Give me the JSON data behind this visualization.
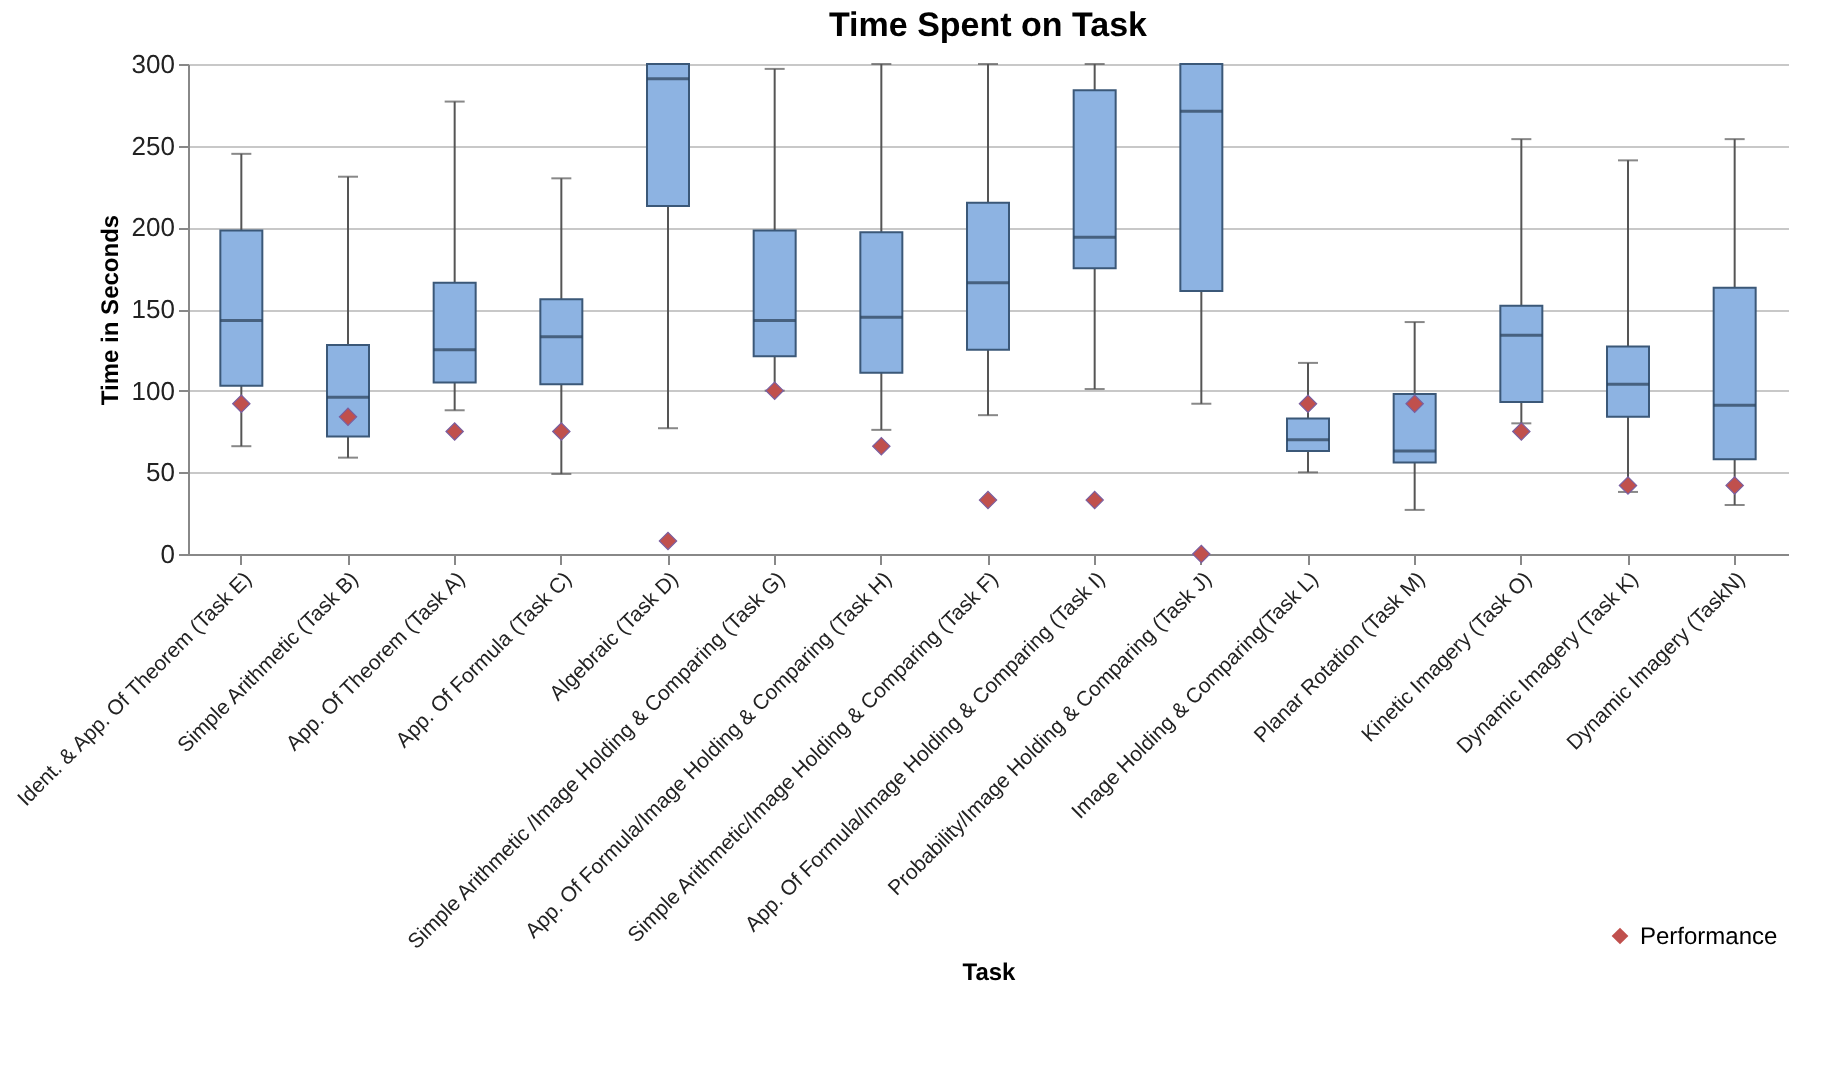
{
  "chart_data": {
    "type": "box",
    "title": "Time Spent on Task",
    "xlabel": "Task",
    "ylabel": "Time in Seconds",
    "categories": [
      "Ident. & App. Of Theorem  (Task E)",
      "Simple Arithmetic (Task B)",
      "App. Of Theorem (Task A)",
      "App. Of Formula (Task C)",
      "Algebraic (Task D)",
      "Simple Arithmetic /Image Holding & Comparing (Task G)",
      "App. Of Formula/Image Holding & Comparing (Task H)",
      "Simple Arithmetic/Image Holding & Comparing (Task F)",
      "App. Of Formula/Image Holding & Comparing (Task I)",
      "Probability/Image Holding & Comparing (Task J)",
      "Image Holding & Comparing(Task L)",
      "Planar Rotation (Task M)",
      "Kinetic Imagery (Task O)",
      "Dynamic Imagery (Task K)",
      "Dynamic Imagery (TaskN)"
    ],
    "series": [
      {
        "type": "box",
        "color": "#8db3e2",
        "boxes": [
          {
            "low": 66,
            "q1": 103,
            "median": 143,
            "q3": 198,
            "high": 245
          },
          {
            "low": 59,
            "q1": 72,
            "median": 96,
            "q3": 128,
            "high": 231
          },
          {
            "low": 88,
            "q1": 105,
            "median": 125,
            "q3": 166,
            "high": 277
          },
          {
            "low": 49,
            "q1": 104,
            "median": 133,
            "q3": 156,
            "high": 230
          },
          {
            "low": 77,
            "q1": 213,
            "median": 291,
            "q3": 300,
            "high": 300
          },
          {
            "low": 100,
            "q1": 121,
            "median": 143,
            "q3": 198,
            "high": 297
          },
          {
            "low": 76,
            "q1": 111,
            "median": 145,
            "q3": 197,
            "high": 300
          },
          {
            "low": 85,
            "q1": 125,
            "median": 166,
            "q3": 215,
            "high": 300
          },
          {
            "low": 101,
            "q1": 175,
            "median": 194,
            "q3": 284,
            "high": 300
          },
          {
            "low": 92,
            "q1": 161,
            "median": 271,
            "q3": 300,
            "high": 300
          },
          {
            "low": 50,
            "q1": 63,
            "median": 70,
            "q3": 83,
            "high": 117
          },
          {
            "low": 27,
            "q1": 56,
            "median": 63,
            "q3": 98,
            "high": 142
          },
          {
            "low": 80,
            "q1": 93,
            "median": 134,
            "q3": 152,
            "high": 254
          },
          {
            "low": 38,
            "q1": 84,
            "median": 104,
            "q3": 127,
            "high": 241
          },
          {
            "low": 30,
            "q1": 58,
            "median": 91,
            "q3": 163,
            "high": 254
          }
        ]
      },
      {
        "type": "scatter",
        "name": "Performance",
        "color": "#c0504d",
        "marker": "diamond",
        "x": [
          "Ident. & App. Of Theorem  (Task E)",
          "Simple Arithmetic (Task B)",
          "App. Of Theorem (Task A)",
          "App. Of Formula (Task C)",
          "Algebraic (Task D)",
          "Simple Arithmetic /Image Holding & Comparing (Task G)",
          "App. Of Formula/Image Holding & Comparing (Task H)",
          "Simple Arithmetic/Image Holding & Comparing (Task F)",
          "App. Of Formula/Image Holding & Comparing (Task I)",
          "Probability/Image Holding & Comparing (Task J)",
          "Image Holding & Comparing(Task L)",
          "Planar Rotation (Task M)",
          "Kinetic Imagery (Task O)",
          "Dynamic Imagery (Task K)",
          "Dynamic Imagery (TaskN)"
        ],
        "values": [
          92,
          84,
          75,
          75,
          8,
          100,
          66,
          33,
          33,
          0,
          92,
          92,
          75,
          42,
          42
        ]
      }
    ],
    "ylim": [
      0,
      300
    ],
    "yticks": [
      0,
      50,
      100,
      150,
      200,
      250,
      300
    ],
    "grid": "y",
    "legend": "bottom right"
  }
}
